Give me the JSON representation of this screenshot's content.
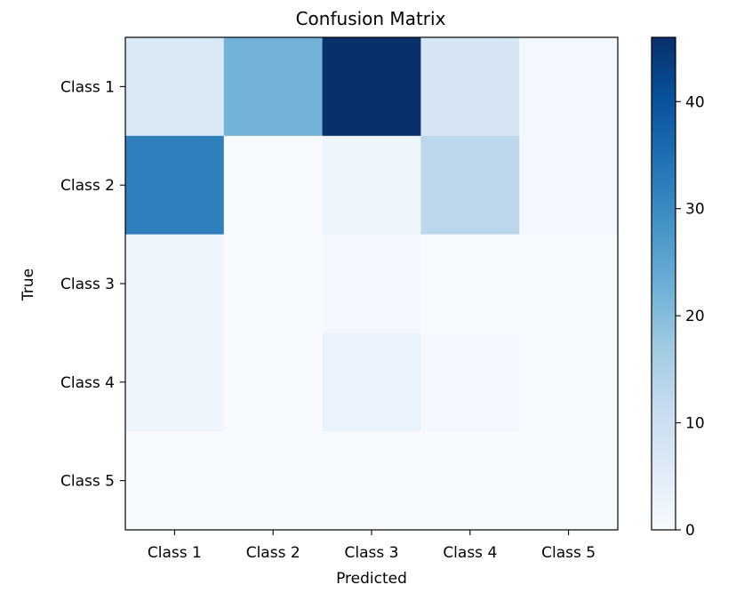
{
  "chart_data": {
    "type": "heatmap",
    "title": "Confusion Matrix",
    "xlabel": "Predicted",
    "ylabel": "True",
    "x_categories": [
      "Class 1",
      "Class 2",
      "Class 3",
      "Class 4",
      "Class 5"
    ],
    "y_categories": [
      "Class 1",
      "Class 2",
      "Class 3",
      "Class 4",
      "Class 5"
    ],
    "values": [
      [
        7,
        22,
        46,
        8,
        1
      ],
      [
        32,
        0,
        2,
        13,
        1
      ],
      [
        2,
        0,
        1,
        0,
        0
      ],
      [
        2,
        0,
        3,
        1,
        0
      ],
      [
        0,
        0,
        0,
        0,
        0
      ]
    ],
    "colormap": "Blues",
    "colorbar": {
      "min": 0,
      "max": 46,
      "ticks": [
        0,
        10,
        20,
        30,
        40
      ]
    }
  }
}
